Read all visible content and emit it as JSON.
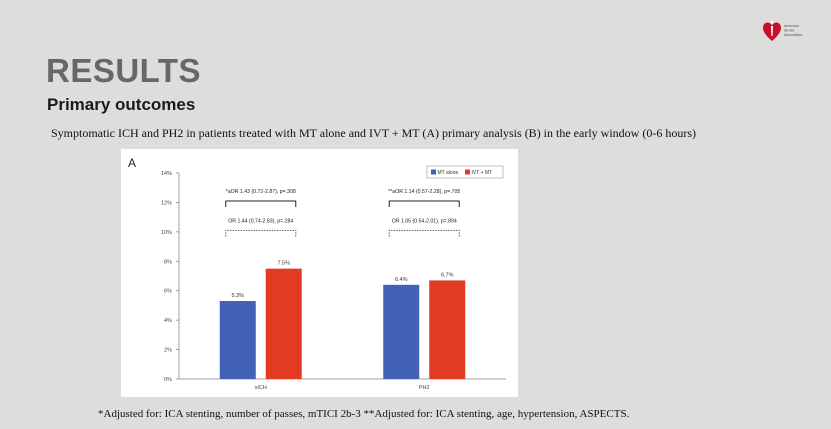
{
  "slide": {
    "title": "RESULTS",
    "subtitle": "Primary outcomes",
    "caption": "Symptomatic ICH and PH2 in patients treated with MT alone and IVT + MT (A) primary analysis (B) in the early window (0-6 hours)",
    "footnote": "*Adjusted for: ICA stenting, number of passes, mTICI 2b-3 **Adjusted for: ICA stenting, age, hypertension, ASPECTS.",
    "logo": {
      "icon": "heart-torch-icon",
      "lines": [
        "American",
        "Stroke",
        "Association."
      ]
    }
  },
  "colors": {
    "mt_alone": "#4361b5",
    "ivt_mt": "#e33a22"
  },
  "chart_data": {
    "type": "bar",
    "panel_label": "A",
    "categories": [
      "sICH",
      "PH2"
    ],
    "series": [
      {
        "name": "MT alone",
        "values": [
          5.3,
          6.4
        ],
        "labels": [
          "5.3%",
          "6.4%"
        ]
      },
      {
        "name": "IVT + MT",
        "values": [
          7.5,
          6.7
        ],
        "labels": [
          "7.5%",
          "6.7%"
        ]
      }
    ],
    "yticks": [
      "0%",
      "2%",
      "4%",
      "6%",
      "8%",
      "10%",
      "12%",
      "14%"
    ],
    "ylim": [
      0,
      14
    ],
    "legend_position": "top-right",
    "grid": false,
    "annotations": [
      {
        "category": "sICH",
        "adjusted": "*aOR 1.43 (0.72-2.87), p=.308",
        "unadjusted": "OR 1.44 (0.74-2.83), p=.284"
      },
      {
        "category": "PH2",
        "adjusted": "**aOR 1.14 (0.57-2.28), p=.705",
        "unadjusted": "OR 1.05 (0.54-2.01), p=.894"
      }
    ]
  }
}
